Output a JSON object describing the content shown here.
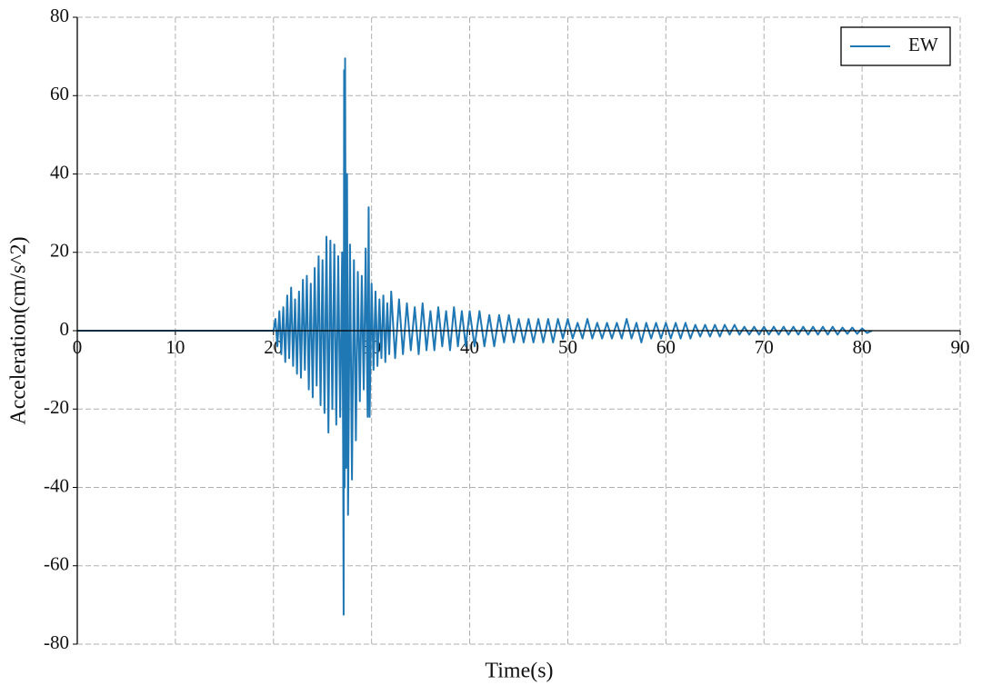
{
  "chart_data": {
    "type": "line",
    "xlabel": "Time(s)",
    "ylabel": "Acceleration(cm/s^2)",
    "x": [
      0,
      20,
      20.2,
      20.4,
      20.6,
      20.8,
      21,
      21.2,
      21.4,
      21.6,
      21.8,
      22,
      22.2,
      22.4,
      22.6,
      22.8,
      23,
      23.2,
      23.4,
      23.6,
      23.8,
      24,
      24.2,
      24.4,
      24.6,
      24.8,
      25,
      25.2,
      25.4,
      25.6,
      25.8,
      26,
      26.2,
      26.4,
      26.6,
      26.8,
      27,
      27.1,
      27.15,
      27.2,
      27.25,
      27.3,
      27.4,
      27.5,
      27.6,
      27.8,
      28,
      28.2,
      28.4,
      28.6,
      28.8,
      29,
      29.2,
      29.4,
      29.6,
      29.7,
      29.8,
      30,
      30.2,
      30.4,
      30.6,
      30.8,
      31,
      31.2,
      31.4,
      31.6,
      31.8,
      32,
      32.4,
      32.8,
      33.2,
      33.6,
      34,
      34.4,
      34.8,
      35.2,
      35.6,
      36,
      36.4,
      36.8,
      37.2,
      37.6,
      38,
      38.4,
      38.8,
      39.2,
      39.6,
      40,
      40.5,
      41,
      41.5,
      42,
      42.5,
      43,
      43.5,
      44,
      44.5,
      45,
      45.5,
      46,
      46.5,
      47,
      47.5,
      48,
      48.5,
      49,
      49.5,
      50,
      50.5,
      51,
      51.5,
      52,
      52.5,
      53,
      53.5,
      54,
      54.5,
      55,
      55.5,
      56,
      56.5,
      57,
      57.5,
      58,
      58.5,
      59,
      59.5,
      60,
      60.5,
      61,
      61.5,
      62,
      62.5,
      63,
      63.5,
      64,
      64.5,
      65,
      65.5,
      66,
      66.5,
      67,
      67.5,
      68,
      68.5,
      69,
      69.5,
      70,
      70.5,
      71,
      71.5,
      72,
      72.5,
      73,
      73.5,
      74,
      74.5,
      75,
      75.5,
      76,
      76.5,
      77,
      77.5,
      78,
      78.5,
      79,
      79.5,
      80,
      80.5,
      81
    ],
    "series": [
      {
        "name": "EW",
        "color": "#1f77b4",
        "values": [
          0,
          0,
          3,
          -4,
          5,
          -6,
          6,
          -8,
          9,
          -7,
          11,
          -9,
          8,
          -11,
          10,
          -12,
          13,
          -10,
          14,
          -15,
          12,
          -17,
          16,
          -14,
          19,
          -19,
          18,
          -21,
          24,
          -26,
          23,
          -20,
          22,
          -24,
          19,
          -22,
          20,
          -30,
          -72.5,
          66.5,
          -40,
          69.5,
          -35,
          40,
          -47,
          22,
          -38,
          18,
          -28,
          15,
          -18,
          14,
          -15,
          21,
          -22,
          31.5,
          -22,
          12,
          -10,
          10,
          -9,
          8,
          -7,
          9,
          -8,
          7,
          -6,
          10,
          -7,
          8,
          -6,
          7,
          -5,
          6,
          -6,
          7,
          -5,
          5,
          -5,
          6,
          -4,
          5,
          -5,
          6,
          -4,
          5,
          -4,
          5,
          -4,
          5,
          -4,
          4,
          -4,
          4,
          -3,
          4,
          -3,
          3,
          -3,
          3,
          -3,
          3,
          -3,
          3,
          -3,
          3,
          -2,
          3,
          -2,
          2,
          -2,
          3,
          -2,
          2,
          -2,
          2,
          -2,
          2,
          -2,
          3,
          -2,
          2,
          -3,
          2,
          -2,
          2,
          -2,
          2,
          -2,
          2,
          -2,
          2,
          -2,
          1.5,
          -1.5,
          1.5,
          -1.5,
          1.5,
          -1.5,
          1.5,
          -1,
          1.5,
          -1,
          1,
          -1,
          1,
          -1,
          1,
          -1,
          1,
          -1,
          1,
          -1,
          1,
          -1,
          1,
          -1,
          1,
          -1,
          1,
          -1,
          1,
          -1,
          0.8,
          -0.8,
          0.8,
          -0.8,
          0.6,
          -0.6,
          0
        ]
      }
    ],
    "xlim": [
      0,
      90
    ],
    "xticks": [
      0,
      10,
      20,
      30,
      40,
      50,
      60,
      70,
      80,
      90
    ],
    "ylim": [
      -80,
      80
    ],
    "yticks": [
      -80,
      -60,
      -40,
      -20,
      0,
      20,
      40,
      60,
      80
    ],
    "grid": true,
    "legend": "upper right"
  }
}
